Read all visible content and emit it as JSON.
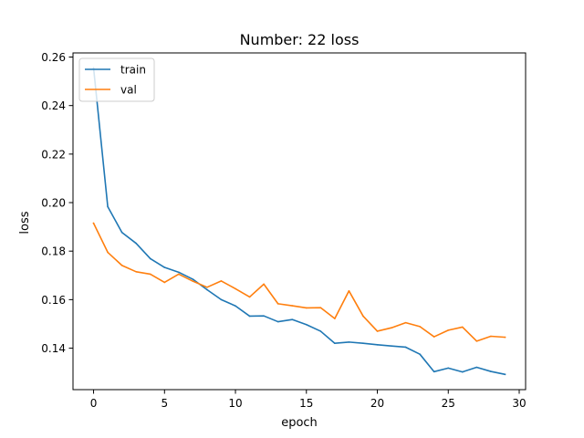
{
  "chart_data": {
    "type": "line",
    "title": "Number: 22 loss",
    "xlabel": "epoch",
    "ylabel": "loss",
    "xlim": [
      -1.45,
      30.45
    ],
    "ylim": [
      0.1229,
      0.2617
    ],
    "x_ticks": [
      0,
      5,
      10,
      15,
      20,
      25,
      30
    ],
    "y_ticks": [
      0.14,
      0.16,
      0.18,
      0.2,
      0.22,
      0.24,
      0.26
    ],
    "x_tick_labels": [
      "0",
      "5",
      "10",
      "15",
      "20",
      "25",
      "30"
    ],
    "y_tick_labels": [
      "0.14",
      "0.16",
      "0.18",
      "0.20",
      "0.22",
      "0.24",
      "0.26"
    ],
    "grid": false,
    "legend_position": "top-left",
    "x": [
      0,
      1,
      2,
      3,
      4,
      5,
      6,
      7,
      8,
      9,
      10,
      11,
      12,
      13,
      14,
      15,
      16,
      17,
      18,
      19,
      20,
      21,
      22,
      23,
      24,
      25,
      26,
      27,
      28,
      29
    ],
    "series": [
      {
        "name": "train",
        "color": "#1f77b4",
        "values": [
          0.2555,
          0.1983,
          0.1877,
          0.1832,
          0.1769,
          0.1733,
          0.1713,
          0.1684,
          0.1641,
          0.16,
          0.1574,
          0.1532,
          0.1533,
          0.1509,
          0.1518,
          0.1497,
          0.147,
          0.142,
          0.1425,
          0.142,
          0.1414,
          0.1409,
          0.1404,
          0.1375,
          0.1303,
          0.1318,
          0.1302,
          0.1321,
          0.1304,
          0.1292
        ]
      },
      {
        "name": "val",
        "color": "#ff7f0e",
        "values": [
          0.1915,
          0.1795,
          0.1741,
          0.1715,
          0.1705,
          0.1671,
          0.1705,
          0.1676,
          0.1651,
          0.1677,
          0.1645,
          0.1611,
          0.1664,
          0.1583,
          0.1575,
          0.1566,
          0.1567,
          0.1522,
          0.1636,
          0.1532,
          0.147,
          0.1484,
          0.1505,
          0.1489,
          0.1447,
          0.1474,
          0.1487,
          0.1429,
          0.1449,
          0.1445
        ]
      }
    ]
  }
}
